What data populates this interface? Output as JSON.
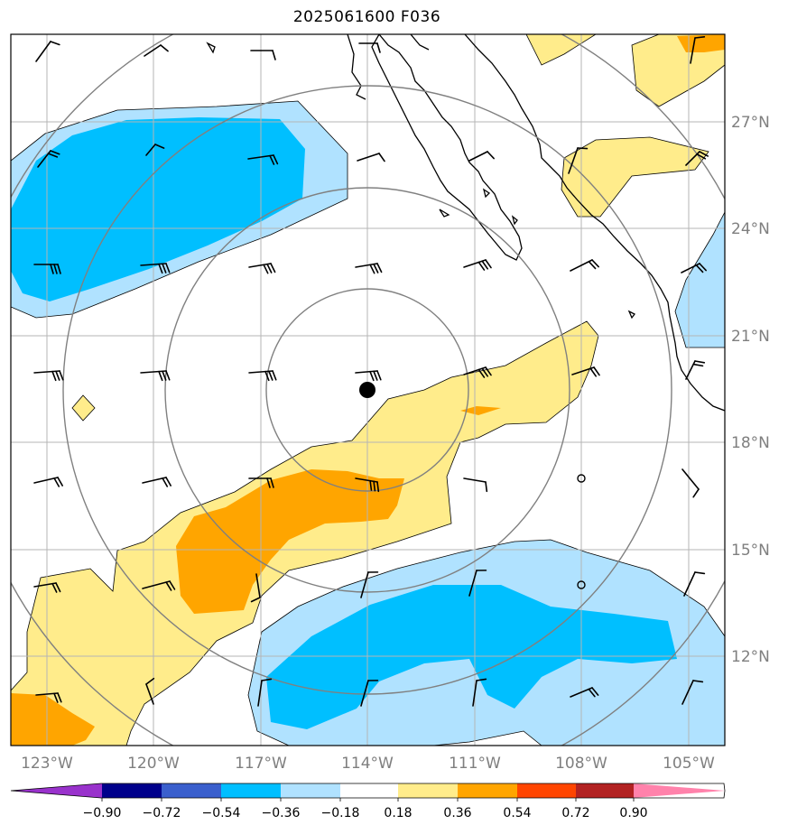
{
  "title": "2025061600 F036",
  "lon_labels": [
    "123°W",
    "120°W",
    "117°W",
    "114°W",
    "111°W",
    "108°W",
    "105°W"
  ],
  "lat_labels": [
    "27°N",
    "24°N",
    "21°N",
    "18°N",
    "15°N",
    "12°N"
  ],
  "colorbar": {
    "ticks": [
      "−0.90",
      "−0.72",
      "−0.54",
      "−0.36",
      "−0.18",
      "0.18",
      "0.36",
      "0.54",
      "0.72",
      "0.90"
    ],
    "colors": [
      "#9932cc",
      "#00008b",
      "#3a5fcd",
      "#00bfff",
      "#b0e2ff",
      "#ffffff",
      "#ffec8b",
      "#ffa500",
      "#ff4500",
      "#b22222",
      "#ff82ab"
    ]
  },
  "map": {
    "extent_lon": [
      -124,
      -104
    ],
    "extent_lat": [
      9.5,
      29.5
    ],
    "center": {
      "lon": -114,
      "lat": 19.5
    },
    "fill_colors": {
      "light_blue": "#b0e2ff",
      "blue": "#00bfff",
      "light_yellow": "#ffec8b",
      "orange": "#ffa500"
    }
  }
}
